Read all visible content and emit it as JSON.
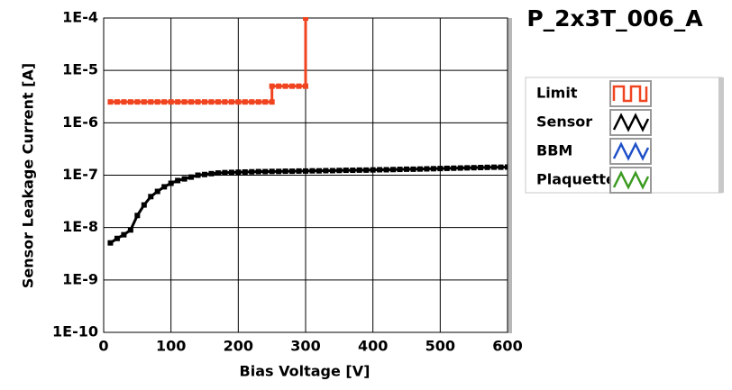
{
  "chart_data": {
    "type": "line",
    "title": "P_2x3T_006_A",
    "x_label": "Bias Voltage [V]",
    "y_label": "Sensor Leakage Current [A]",
    "log_y": true,
    "grid": true,
    "legend_position": "right",
    "xlim": [
      0,
      600
    ],
    "xticks": [
      0,
      100,
      200,
      300,
      400,
      500,
      600
    ],
    "ylim": [
      1e-10,
      0.0001
    ],
    "yticks": [
      {
        "value": 1e-10,
        "label": "1E-10"
      },
      {
        "value": 1e-09,
        "label": "1E-9"
      },
      {
        "value": 1e-08,
        "label": "1E-8"
      },
      {
        "value": 1e-07,
        "label": "1E-7"
      },
      {
        "value": 1e-06,
        "label": "1E-6"
      },
      {
        "value": 1e-05,
        "label": "1E-5"
      },
      {
        "value": 0.0001,
        "label": "1E-4"
      }
    ],
    "series": [
      {
        "name": "Limit",
        "color": "#f04420",
        "x": [
          10,
          20,
          30,
          40,
          50,
          60,
          70,
          80,
          90,
          100,
          110,
          120,
          130,
          140,
          150,
          160,
          170,
          180,
          190,
          200,
          210,
          220,
          230,
          240,
          250,
          250,
          260,
          270,
          280,
          290,
          300,
          300
        ],
        "values": [
          2.5e-06,
          2.5e-06,
          2.5e-06,
          2.5e-06,
          2.5e-06,
          2.5e-06,
          2.5e-06,
          2.5e-06,
          2.5e-06,
          2.5e-06,
          2.5e-06,
          2.5e-06,
          2.5e-06,
          2.5e-06,
          2.5e-06,
          2.5e-06,
          2.5e-06,
          2.5e-06,
          2.5e-06,
          2.5e-06,
          2.5e-06,
          2.5e-06,
          2.5e-06,
          2.5e-06,
          2.5e-06,
          5e-06,
          5e-06,
          5e-06,
          5e-06,
          5e-06,
          5e-06,
          0.0001
        ]
      },
      {
        "name": "Sensor",
        "color": "#000000",
        "x": [
          10,
          20,
          30,
          40,
          50,
          60,
          70,
          80,
          90,
          100,
          110,
          120,
          130,
          140,
          150,
          160,
          170,
          180,
          190,
          200,
          210,
          220,
          230,
          240,
          250,
          260,
          270,
          280,
          290,
          300,
          310,
          320,
          330,
          340,
          350,
          360,
          370,
          380,
          390,
          400,
          410,
          420,
          430,
          440,
          450,
          460,
          470,
          480,
          490,
          500,
          510,
          520,
          530,
          540,
          550,
          560,
          570,
          580,
          590,
          600
        ],
        "values": [
          5.1e-09,
          6.2e-09,
          7.3e-09,
          9e-09,
          1.7e-08,
          2.7e-08,
          3.9e-08,
          4.9e-08,
          6e-08,
          7e-08,
          7.9e-08,
          8.5e-08,
          9.2e-08,
          1e-07,
          1.03e-07,
          1.07e-07,
          1.1e-07,
          1.12e-07,
          1.13e-07,
          1.14e-07,
          1.15e-07,
          1.16e-07,
          1.17e-07,
          1.17e-07,
          1.18e-07,
          1.18e-07,
          1.19e-07,
          1.19e-07,
          1.2e-07,
          1.2e-07,
          1.21e-07,
          1.21e-07,
          1.22e-07,
          1.22e-07,
          1.23e-07,
          1.24e-07,
          1.24e-07,
          1.25e-07,
          1.25e-07,
          1.26e-07,
          1.27e-07,
          1.27e-07,
          1.28e-07,
          1.29e-07,
          1.3e-07,
          1.3e-07,
          1.31e-07,
          1.32e-07,
          1.33e-07,
          1.34e-07,
          1.35e-07,
          1.36e-07,
          1.37e-07,
          1.38e-07,
          1.39e-07,
          1.4e-07,
          1.41e-07,
          1.42e-07,
          1.42e-07,
          1.43e-07
        ]
      },
      {
        "name": "BBM",
        "color": "#1f50c8",
        "x": [],
        "values": []
      },
      {
        "name": "Plaquette",
        "color": "#3a9a20",
        "x": [],
        "values": []
      }
    ]
  }
}
